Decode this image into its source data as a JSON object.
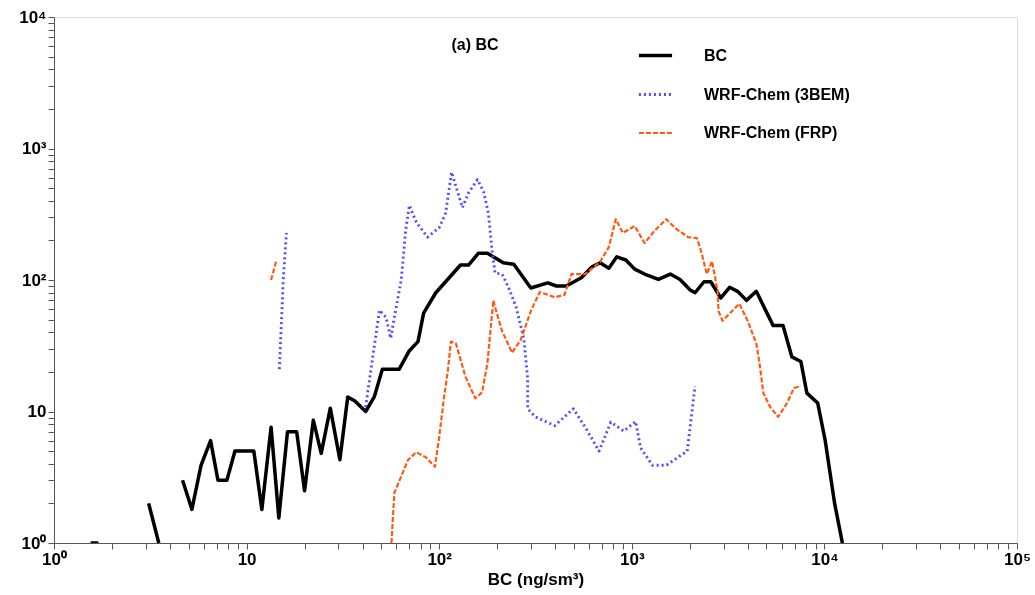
{
  "chart_data": {
    "type": "line",
    "xlabel": "BC (ng/sm³)",
    "annotations": [
      "(a) BC"
    ],
    "log": "xy",
    "grid": false,
    "legend": "top right",
    "marker": "none",
    "xlim": [
      1,
      100000
    ],
    "ylim": [
      1,
      10000
    ],
    "xticks": [
      {
        "value": 1,
        "label": "10⁰"
      },
      {
        "value": 2,
        "label": null
      },
      {
        "value": 3,
        "label": null
      },
      {
        "value": 4,
        "label": null
      },
      {
        "value": 5,
        "label": null
      },
      {
        "value": 6,
        "label": null
      },
      {
        "value": 7,
        "label": null
      },
      {
        "value": 8,
        "label": null
      },
      {
        "value": 9,
        "label": null
      },
      10,
      {
        "value": 20,
        "label": null
      },
      {
        "value": 30,
        "label": null
      },
      {
        "value": 40,
        "label": null
      },
      {
        "value": 50,
        "label": null
      },
      {
        "value": 60,
        "label": null
      },
      {
        "value": 70,
        "label": null
      },
      {
        "value": 80,
        "label": null
      },
      {
        "value": 90,
        "label": null
      },
      {
        "value": 100,
        "label": "10²"
      },
      {
        "value": 200,
        "label": null
      },
      {
        "value": 300,
        "label": null
      },
      {
        "value": 400,
        "label": null
      },
      {
        "value": 500,
        "label": null
      },
      {
        "value": 600,
        "label": null
      },
      {
        "value": 700,
        "label": null
      },
      {
        "value": 800,
        "label": null
      },
      {
        "value": 900,
        "label": null
      },
      {
        "value": 1000,
        "label": "10³"
      },
      {
        "value": 2000,
        "label": null
      },
      {
        "value": 3000,
        "label": null
      },
      {
        "value": 4000,
        "label": null
      },
      {
        "value": 5000,
        "label": null
      },
      {
        "value": 6000,
        "label": null
      },
      {
        "value": 7000,
        "label": null
      },
      {
        "value": 8000,
        "label": null
      },
      {
        "value": 9000,
        "label": null
      },
      {
        "value": 10000,
        "label": "10⁴"
      },
      {
        "value": 20000,
        "label": null
      },
      {
        "value": 30000,
        "label": null
      },
      {
        "value": 40000,
        "label": null
      },
      {
        "value": 50000,
        "label": null
      },
      {
        "value": 60000,
        "label": null
      },
      {
        "value": 70000,
        "label": null
      },
      {
        "value": 80000,
        "label": null
      },
      {
        "value": 90000,
        "label": null
      },
      {
        "value": 100000,
        "label": "10⁵"
      }
    ],
    "yticks": [
      {
        "value": 1,
        "label": "10⁰"
      },
      {
        "value": 2,
        "label": null
      },
      {
        "value": 3,
        "label": null
      },
      {
        "value": 4,
        "label": null
      },
      {
        "value": 5,
        "label": null
      },
      {
        "value": 6,
        "label": null
      },
      {
        "value": 7,
        "label": null
      },
      {
        "value": 8,
        "label": null
      },
      {
        "value": 9,
        "label": null
      },
      10,
      {
        "value": 20,
        "label": null
      },
      {
        "value": 30,
        "label": null
      },
      {
        "value": 40,
        "label": null
      },
      {
        "value": 50,
        "label": null
      },
      {
        "value": 60,
        "label": null
      },
      {
        "value": 70,
        "label": null
      },
      {
        "value": 80,
        "label": null
      },
      {
        "value": 90,
        "label": null
      },
      {
        "value": 100,
        "label": "10²"
      },
      {
        "value": 200,
        "label": null
      },
      {
        "value": 300,
        "label": null
      },
      {
        "value": 400,
        "label": null
      },
      {
        "value": 500,
        "label": null
      },
      {
        "value": 600,
        "label": null
      },
      {
        "value": 700,
        "label": null
      },
      {
        "value": 800,
        "label": null
      },
      {
        "value": 900,
        "label": null
      },
      {
        "value": 1000,
        "label": "10³"
      },
      {
        "value": 2000,
        "label": null
      },
      {
        "value": 3000,
        "label": null
      },
      {
        "value": 4000,
        "label": null
      },
      {
        "value": 5000,
        "label": null
      },
      {
        "value": 6000,
        "label": null
      },
      {
        "value": 7000,
        "label": null
      },
      {
        "value": 8000,
        "label": null
      },
      {
        "value": 9000,
        "label": null
      },
      {
        "value": 10000,
        "label": "10⁴"
      }
    ],
    "series": [
      {
        "name": "BC",
        "color": "#000000",
        "line_style": "solid",
        "x": [
          1.55,
          1.7,
          2.4,
          3.1,
          3.5,
          4.0,
          4.65,
          5.2,
          5.8,
          6.5,
          7.1,
          7.9,
          8.7,
          10.9,
          12,
          13.4,
          14.7,
          16.3,
          18.2,
          20,
          22.2,
          24.4,
          27.2,
          30.5,
          33.5,
          36.5,
          41.5,
          46,
          50.7,
          62,
          70,
          77.6,
          83,
          96,
          110,
          129,
          142,
          160,
          178,
          215,
          244,
          299,
          366,
          406,
          457,
          547,
          622,
          684,
          760,
          836,
          931,
          1035,
          1165,
          1374,
          1585,
          1780,
          2010,
          2130,
          2370,
          2570,
          2900,
          3220,
          3540,
          3940,
          4430,
          5420,
          6100,
          6780,
          7550,
          8110,
          9230,
          10100,
          11300,
          12400
        ],
        "values": [
          1,
          1,
          null,
          2,
          1,
          null,
          3,
          1.8,
          3.9,
          6,
          3,
          3,
          5,
          5,
          1.8,
          7.6,
          1.55,
          7,
          7,
          2.5,
          8.6,
          4.8,
          10.6,
          4.3,
          12.9,
          12,
          10,
          12.9,
          21,
          21,
          29,
          34,
          56,
          80,
          100,
          130,
          130,
          160,
          160,
          135,
          132,
          87,
          95,
          90,
          90,
          104,
          126,
          135,
          123,
          150,
          142,
          121,
          111,
          101,
          111,
          101,
          84,
          80,
          97,
          97,
          73,
          88,
          82,
          70,
          82,
          45,
          45,
          26,
          24,
          13.8,
          11.6,
          6,
          2,
          1
        ]
      },
      {
        "name": "WRF-Chem (3BEM)",
        "color": "#4d4dff",
        "line_style": "dotted",
        "x": [
          14.8,
          15.5,
          16.1,
          30,
          41.5,
          45.5,
          49,
          53,
          56,
          58.5,
          63.5,
          67,
          70,
          76,
          87,
          100,
          108,
          116,
          124,
          132,
          142,
          158,
          170,
          180,
          188,
          195,
          212,
          229,
          251,
          275,
          288,
          288,
          316,
          398,
          497,
          573,
          676,
          778,
          908,
          1047,
          1110,
          1280,
          1510,
          1940,
          2130
        ],
        "values": [
          21,
          100,
          228,
          null,
          10.8,
          28,
          59,
          52,
          36,
          52,
          100,
          240,
          370,
          275,
          212,
          250,
          323,
          660,
          480,
          355,
          460,
          580,
          470,
          323,
          169,
          113,
          111,
          88,
          62,
          36,
          17.7,
          10.5,
          9.1,
          7.8,
          10.5,
          7.6,
          5.0,
          8.3,
          7.1,
          8.4,
          5.3,
          3.9,
          3.9,
          5.0,
          15.6
        ]
      },
      {
        "name": "WRF-Chem (FRP)",
        "color": "#ff5a14",
        "line_style": "dashed",
        "x": [
          13.4,
          14.3,
          30,
          56.5,
          58.5,
          69,
          76,
          85,
          95,
          100,
          106,
          111,
          115,
          122,
          137,
          154,
          167,
          178,
          191,
          195,
          212,
          239,
          265,
          299,
          333,
          398,
          447,
          486,
          573,
          684,
          760,
          826,
          898,
          1035,
          1165,
          1310,
          1510,
          1680,
          1960,
          2180,
          2310,
          2450,
          2610,
          2790,
          2820,
          2960,
          3620,
          3990,
          4430,
          4590,
          4820,
          5230,
          5750,
          6400,
          6950,
          7550
        ],
        "values": [
          100,
          142,
          null,
          1.0,
          2.4,
          4.3,
          4.9,
          4.5,
          3.8,
          6.4,
          12.9,
          20.7,
          34,
          33,
          18.3,
          12.6,
          14,
          23.4,
          70,
          62,
          41,
          28,
          35,
          58,
          81,
          74,
          77,
          111,
          111,
          137,
          178,
          290,
          228,
          257,
          191,
          236,
          290,
          248,
          212,
          208,
          158,
          111,
          139,
          82,
          58,
          49,
          66,
          49,
          33,
          24,
          13.8,
          10.8,
          9.1,
          11.6,
          15.1,
          15.6
        ]
      }
    ]
  }
}
